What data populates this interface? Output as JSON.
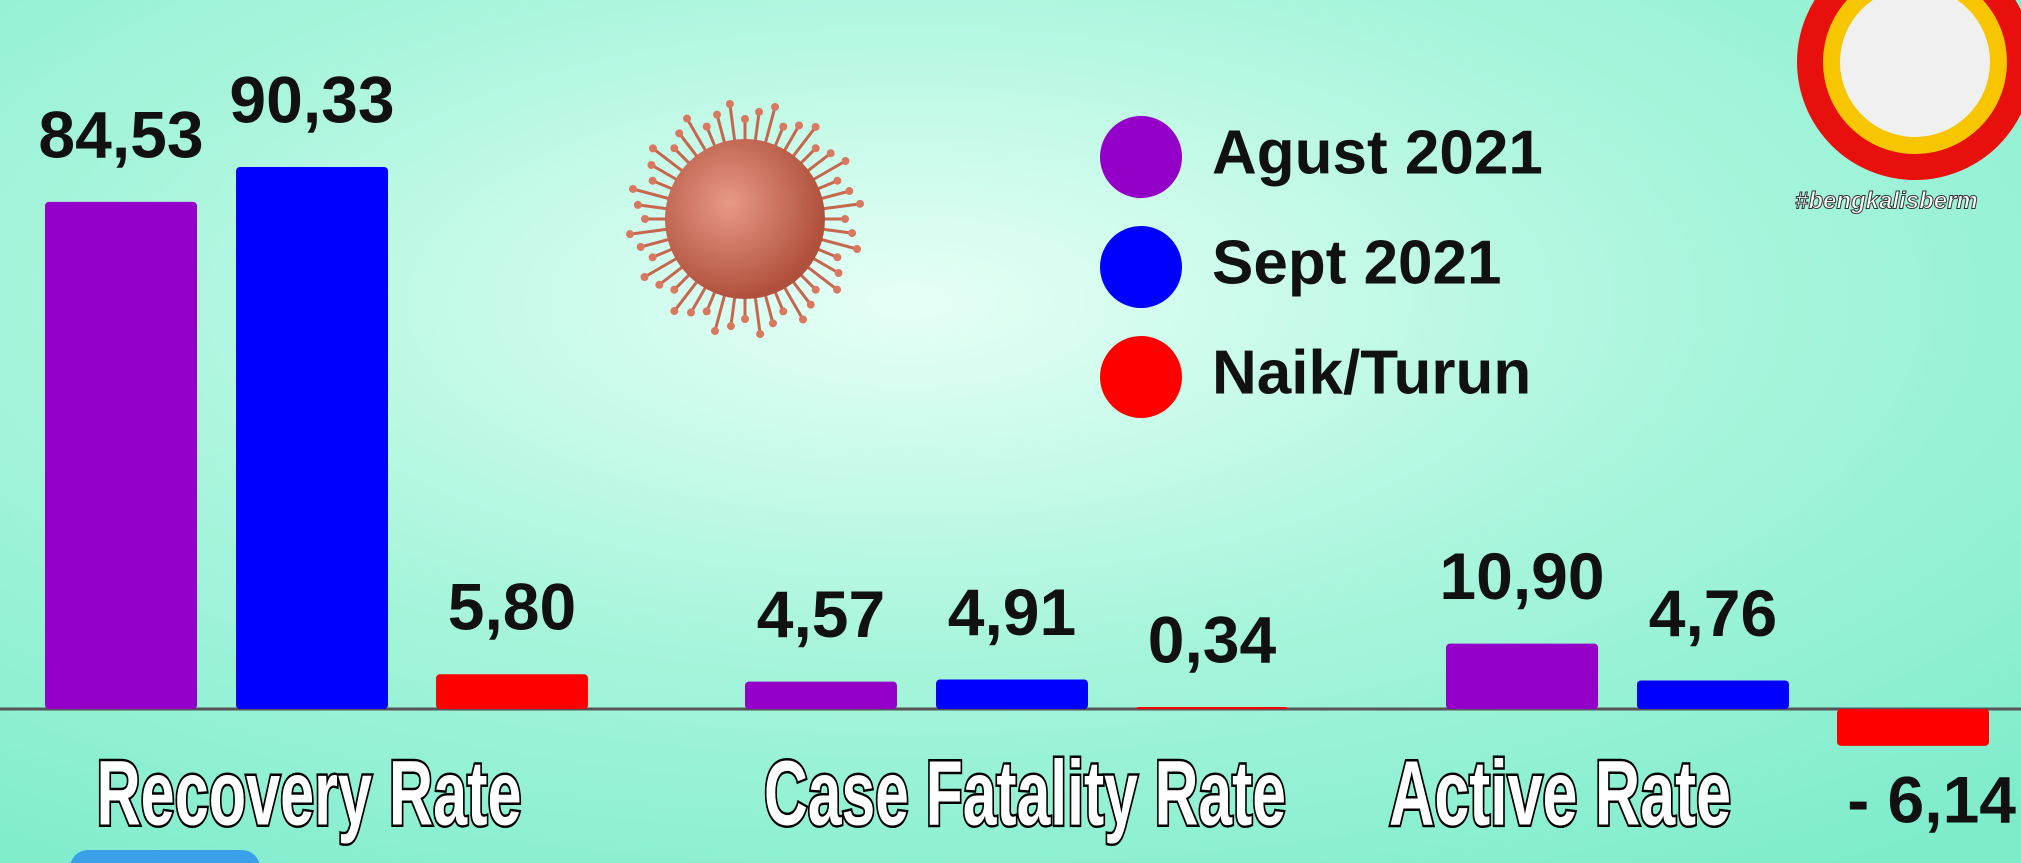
{
  "chart_data": {
    "type": "bar",
    "categories": [
      "Recovery Rate",
      "Case Fatality Rate",
      "Active Rate"
    ],
    "series": [
      {
        "name": "Agust 2021",
        "color": "#9400c8",
        "values": [
          84.53,
          4.57,
          10.9
        ],
        "value_labels": [
          "84,53",
          "4,57",
          "10,90"
        ]
      },
      {
        "name": "Sept 2021",
        "color": "#0000ff",
        "values": [
          90.33,
          4.91,
          4.76
        ],
        "value_labels": [
          "90,33",
          "4,91",
          "4,76"
        ]
      },
      {
        "name": "Naik/Turun",
        "color": "#ff0000",
        "values": [
          5.8,
          0.34,
          -6.14
        ],
        "value_labels": [
          "5,80",
          "0,34",
          "- 6,14"
        ]
      }
    ],
    "hashtag": "#bengkalisberm"
  }
}
